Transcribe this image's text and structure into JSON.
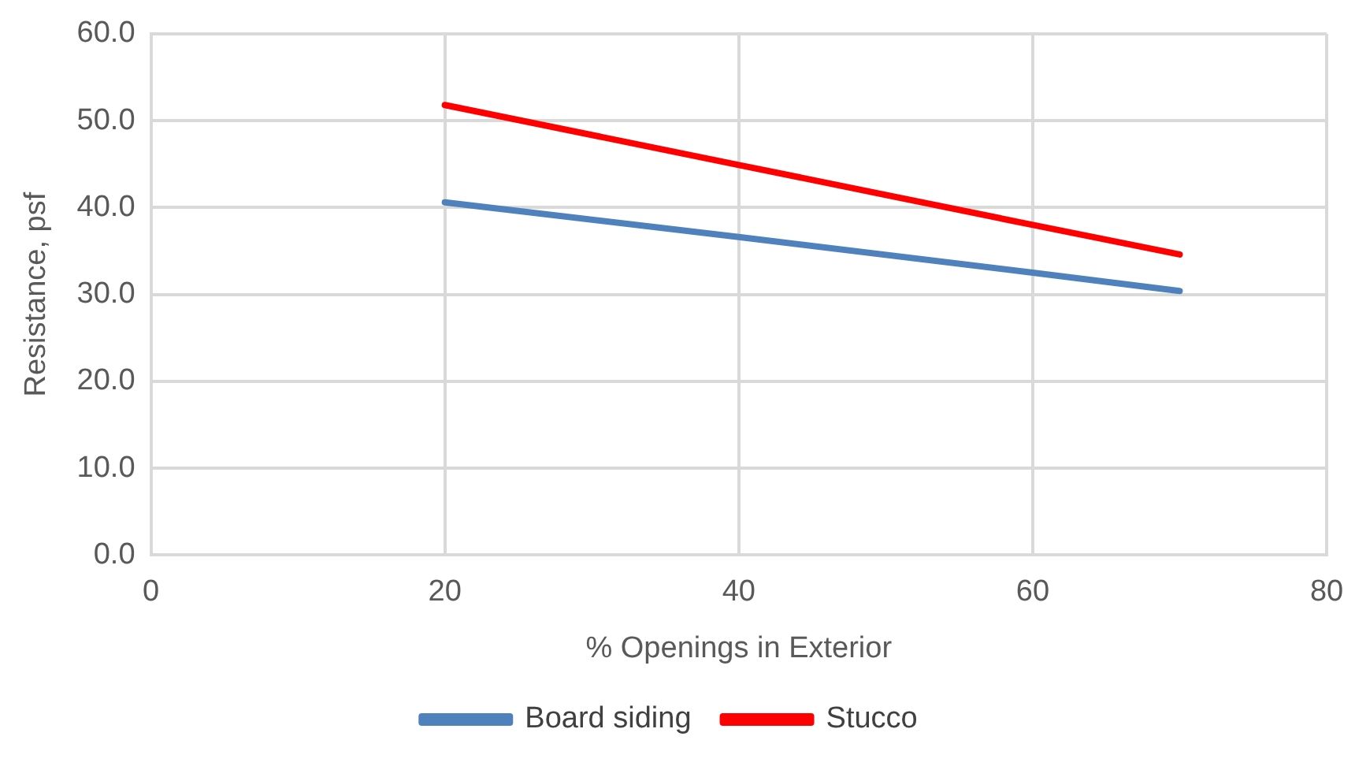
{
  "chart_data": {
    "type": "line",
    "xlabel": "% Openings in Exterior",
    "ylabel": "Resistance, psf",
    "x": [
      20,
      40,
      60,
      70
    ],
    "series": [
      {
        "name": "Board siding",
        "color": "#4f81bd",
        "values": [
          40.6,
          36.6,
          32.5,
          30.4
        ]
      },
      {
        "name": "Stucco",
        "color": "#ff0000",
        "values": [
          51.8,
          44.9,
          38.0,
          34.6
        ]
      }
    ],
    "xlim": [
      0,
      80
    ],
    "xticks": [
      0,
      20,
      40,
      60,
      80
    ],
    "ylim": [
      0,
      60
    ],
    "yticks": [
      {
        "value": 0,
        "label": "0.0"
      },
      {
        "value": 10,
        "label": "10.0"
      },
      {
        "value": 20,
        "label": "20.0"
      },
      {
        "value": 30,
        "label": "30.0"
      },
      {
        "value": 40,
        "label": "40.0"
      },
      {
        "value": 50,
        "label": "50.0"
      },
      {
        "value": 60,
        "label": "60.0"
      }
    ],
    "grid": true,
    "legend": "bottom",
    "marker": "none",
    "line_style": "solid"
  }
}
